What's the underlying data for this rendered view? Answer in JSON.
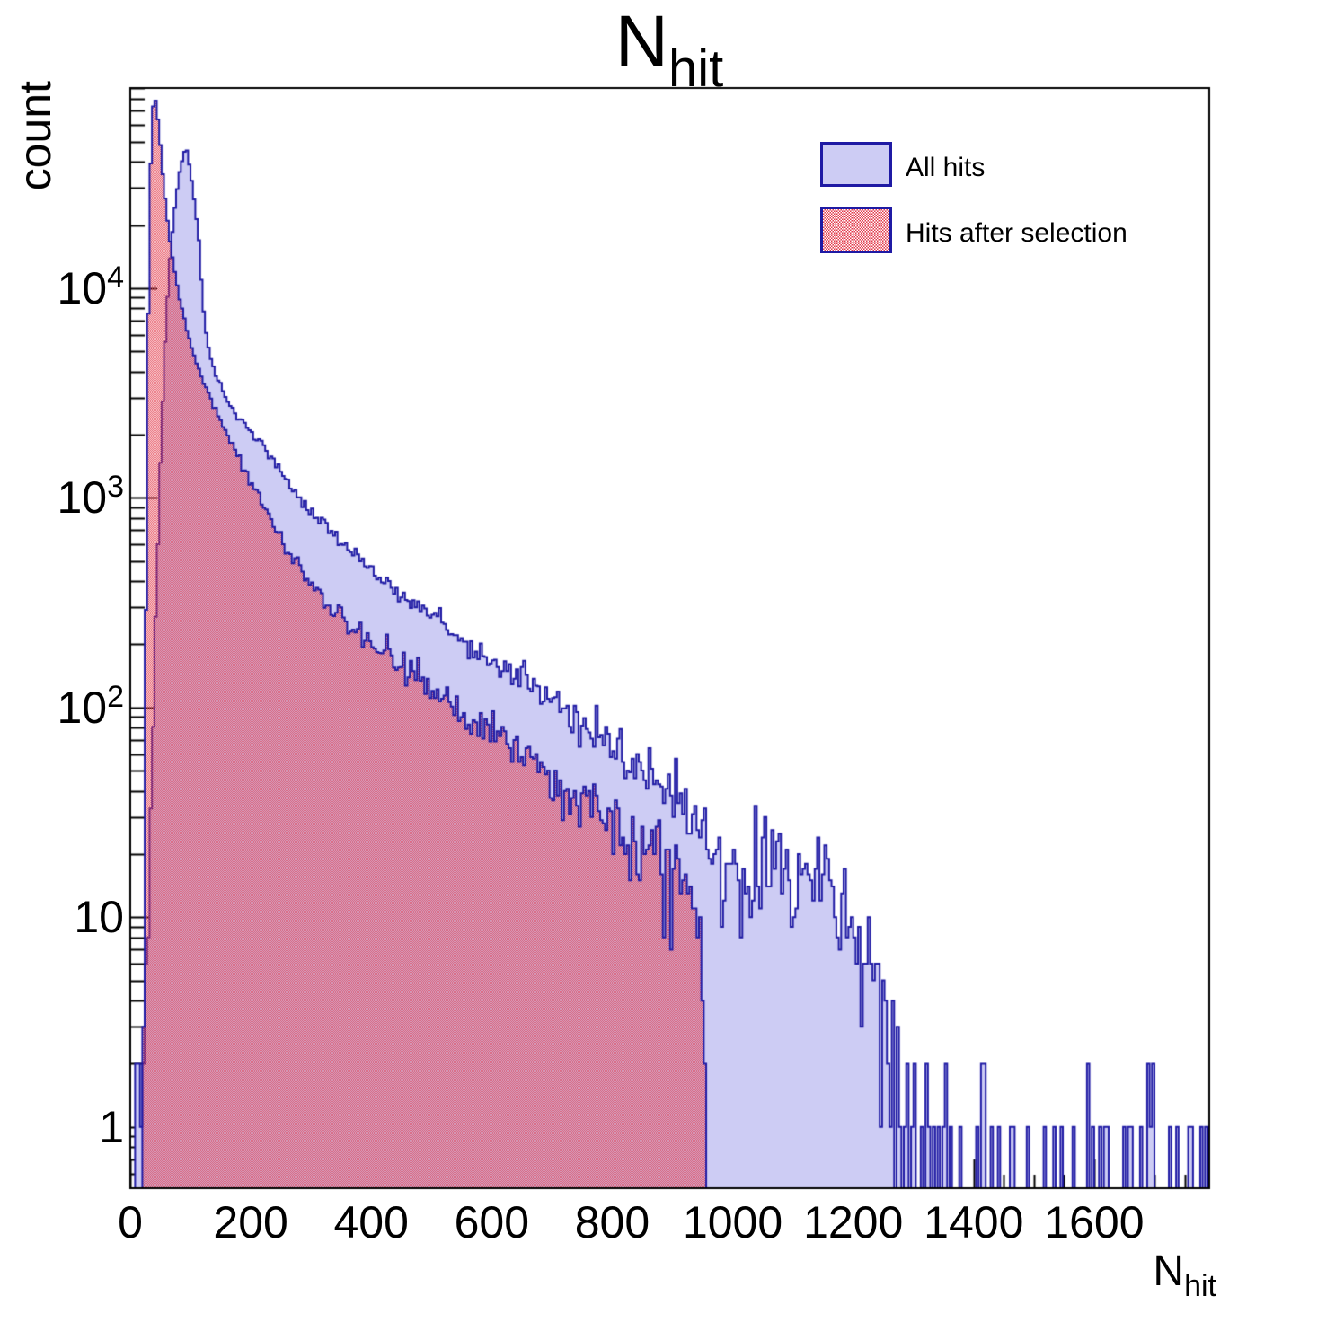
{
  "title": {
    "base": "N",
    "sub": "hit"
  },
  "y_axis": {
    "label": "count",
    "scale": "log",
    "range": [
      0.51,
      90000
    ],
    "ticks": [
      {
        "value": 1,
        "base": "1",
        "exp": ""
      },
      {
        "value": 10,
        "base": "10",
        "exp": ""
      },
      {
        "value": 100,
        "base": "10",
        "exp": "2"
      },
      {
        "value": 1000,
        "base": "10",
        "exp": "3"
      },
      {
        "value": 10000,
        "base": "10",
        "exp": "4"
      }
    ]
  },
  "x_axis": {
    "label_base": "N",
    "label_sub": "hit",
    "range": [
      0,
      1791
    ],
    "major_step": 200,
    "minor_step": 50,
    "ticks": [
      {
        "value": 0,
        "label": "0"
      },
      {
        "value": 200,
        "label": "200"
      },
      {
        "value": 400,
        "label": "400"
      },
      {
        "value": 600,
        "label": "600"
      },
      {
        "value": 800,
        "label": "800"
      },
      {
        "value": 1000,
        "label": "1000"
      },
      {
        "value": 1200,
        "label": "1200"
      },
      {
        "value": 1400,
        "label": "1400"
      },
      {
        "value": 1600,
        "label": "1600"
      }
    ]
  },
  "legend": {
    "items": [
      {
        "label": "All hits",
        "style": "solid-blue"
      },
      {
        "label": "Hits after selection",
        "style": "red-checker"
      }
    ]
  },
  "colors": {
    "line": "#1f1aa4",
    "blue_fill": "#cdccf4",
    "red_checker": "#e23a4b",
    "axis": "#000000"
  },
  "chart_data": {
    "type": "bar",
    "subtype": "step-histogram-log-y",
    "title": "N_hit",
    "xlabel": "N_hit",
    "ylabel": "count",
    "xlim": [
      0,
      1791
    ],
    "ylim": [
      0.51,
      90000
    ],
    "bin_width": 4,
    "noise_seed": 1337,
    "grid": false,
    "legend_position": "top-right",
    "series": [
      {
        "name": "All hits",
        "envelope_x": [
          2,
          6,
          10,
          14,
          18,
          22,
          26,
          30,
          34,
          38,
          42,
          46,
          50,
          55,
          60,
          66,
          72,
          78,
          84,
          89,
          93,
          100,
          108,
          114,
          118,
          122,
          126,
          131,
          140,
          152,
          165,
          180,
          196,
          210,
          225,
          250,
          276,
          305,
          330,
          365,
          400,
          440,
          480,
          520,
          560,
          600,
          650,
          700,
          750,
          800,
          850,
          900,
          950,
          985,
          1020,
          1060,
          1100,
          1140,
          1180,
          1210,
          1235,
          1252,
          1266,
          1280,
          1295,
          1315,
          1340,
          1375,
          1420,
          1480,
          1560,
          1660,
          1790
        ],
        "envelope_count": [
          0.7,
          1.3,
          0.9,
          1.7,
          1.2,
          2.2,
          4,
          10,
          30,
          90,
          260,
          620,
          1400,
          3600,
          7500,
          14000,
          21500,
          30000,
          38500,
          44000,
          46800,
          36000,
          24000,
          17000,
          11000,
          7800,
          6200,
          5000,
          3900,
          3300,
          2800,
          2400,
          2100,
          1900,
          1700,
          1350,
          1000,
          820,
          700,
          560,
          450,
          360,
          300,
          250,
          200,
          168,
          135,
          107,
          84,
          65,
          50,
          39,
          27,
          17,
          16,
          19,
          18,
          16,
          13,
          10,
          6.5,
          4.5,
          3,
          2,
          1.4,
          0.9,
          0.65,
          0.5,
          0.42,
          0.36,
          0.32,
          0.3,
          0.28
        ],
        "peak": {
          "x": 93,
          "count": 47000
        },
        "x_start": 0,
        "x_end": 1790
      },
      {
        "name": "Hits after selection",
        "envelope_x": [
          20,
          23,
          26,
          29,
          32,
          35,
          38,
          41,
          44,
          48,
          52,
          56,
          61,
          66,
          72,
          79,
          87,
          96,
          106,
          117,
          128,
          140,
          152,
          165,
          180,
          196,
          214,
          233,
          254,
          276,
          300,
          330,
          365,
          400,
          440,
          480,
          525,
          570,
          620,
          670,
          720,
          770,
          820,
          870,
          915,
          945,
          952,
          957,
          961,
          964
        ],
        "envelope_count": [
          0.5,
          6,
          300,
          4500,
          22000,
          52000,
          73000,
          81000,
          73000,
          56000,
          41000,
          30000,
          22000,
          16800,
          12800,
          9800,
          7600,
          6000,
          4800,
          3900,
          3250,
          2700,
          2260,
          1880,
          1540,
          1230,
          1000,
          800,
          620,
          470,
          385,
          310,
          245,
          200,
          165,
          136,
          110,
          88,
          69,
          54,
          42,
          33,
          26,
          20,
          16.5,
          13,
          6,
          1.5,
          0.4,
          0.01
        ],
        "peak": {
          "x": 41,
          "count": 81000
        },
        "x_start": 20,
        "x_end": 964
      }
    ]
  }
}
